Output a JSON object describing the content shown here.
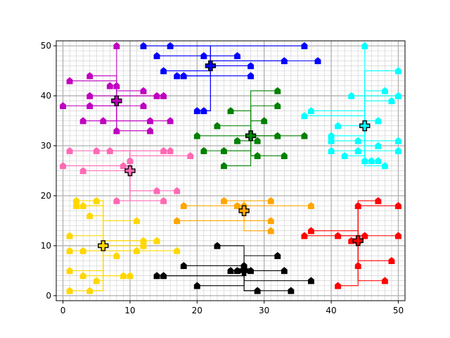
{
  "chart_data": {
    "type": "scatter",
    "title": "",
    "xlabel": "",
    "ylabel": "",
    "xlim": [
      -1,
      51
    ],
    "ylim": [
      -1,
      51
    ],
    "major_ticks": [
      0,
      10,
      20,
      30,
      40,
      50
    ],
    "major_tick_labels": [
      "0",
      "10",
      "20",
      "30",
      "40",
      "50"
    ],
    "minor_step": 1,
    "grid": "major and minor",
    "legend": "none",
    "series": [
      {
        "color": "#0000ff",
        "center": [
          22,
          46
        ],
        "points": [
          [
            12,
            50
          ],
          [
            16,
            50
          ],
          [
            36,
            50
          ],
          [
            14,
            48
          ],
          [
            21,
            48
          ],
          [
            26,
            48
          ],
          [
            33,
            47
          ],
          [
            38,
            47
          ],
          [
            28,
            46
          ],
          [
            15,
            45
          ],
          [
            28,
            44
          ],
          [
            17,
            44
          ],
          [
            18,
            44
          ],
          [
            20,
            37
          ],
          [
            21,
            37
          ]
        ]
      },
      {
        "color": "#bf00bf",
        "center": [
          8,
          39
        ],
        "points": [
          [
            8,
            50
          ],
          [
            1,
            43
          ],
          [
            4,
            44
          ],
          [
            7,
            42
          ],
          [
            8,
            42
          ],
          [
            12,
            41
          ],
          [
            4,
            40
          ],
          [
            14,
            40
          ],
          [
            15,
            40
          ],
          [
            0,
            38
          ],
          [
            4,
            38
          ],
          [
            12,
            38
          ],
          [
            3,
            35
          ],
          [
            6,
            35
          ],
          [
            13,
            35
          ],
          [
            16,
            35
          ],
          [
            8,
            33
          ],
          [
            13,
            33
          ]
        ]
      },
      {
        "color": "#008000",
        "center": [
          28,
          32
        ],
        "points": [
          [
            32,
            41
          ],
          [
            32,
            38
          ],
          [
            25,
            37
          ],
          [
            30,
            35
          ],
          [
            23,
            34
          ],
          [
            20,
            32
          ],
          [
            32,
            32
          ],
          [
            36,
            32
          ],
          [
            26,
            31
          ],
          [
            29,
            31
          ],
          [
            21,
            29
          ],
          [
            24,
            29
          ],
          [
            29,
            28
          ],
          [
            33,
            28
          ],
          [
            24,
            26
          ]
        ]
      },
      {
        "color": "#00ffff",
        "center": [
          45,
          34
        ],
        "points": [
          [
            45,
            50
          ],
          [
            50,
            45
          ],
          [
            48,
            41
          ],
          [
            43,
            40
          ],
          [
            50,
            40
          ],
          [
            49,
            39
          ],
          [
            37,
            37
          ],
          [
            36,
            36
          ],
          [
            47,
            35
          ],
          [
            41,
            34
          ],
          [
            40,
            32
          ],
          [
            40,
            31
          ],
          [
            44,
            31
          ],
          [
            50,
            31
          ],
          [
            40,
            29
          ],
          [
            44,
            29
          ],
          [
            47,
            30
          ],
          [
            50,
            29
          ],
          [
            42,
            28
          ],
          [
            45,
            27
          ],
          [
            46,
            27
          ],
          [
            47,
            27
          ],
          [
            48,
            26
          ]
        ]
      },
      {
        "color": "#ff69b4",
        "center": [
          10,
          25
        ],
        "points": [
          [
            1,
            29
          ],
          [
            5,
            29
          ],
          [
            7,
            29
          ],
          [
            15,
            29
          ],
          [
            16,
            29
          ],
          [
            19,
            28
          ],
          [
            10,
            27
          ],
          [
            0,
            26
          ],
          [
            9,
            26
          ],
          [
            3,
            25
          ],
          [
            14,
            21
          ],
          [
            17,
            21
          ],
          [
            8,
            19
          ],
          [
            15,
            19
          ]
        ]
      },
      {
        "color": "#ffa500",
        "center": [
          27,
          17
        ],
        "points": [
          [
            24,
            19
          ],
          [
            31,
            19
          ],
          [
            18,
            18
          ],
          [
            26,
            18
          ],
          [
            27,
            18
          ],
          [
            37,
            18
          ],
          [
            17,
            15
          ],
          [
            31,
            15
          ],
          [
            31,
            13
          ]
        ]
      },
      {
        "color": "#ff0000",
        "center": [
          44,
          11
        ],
        "points": [
          [
            47,
            19
          ],
          [
            44,
            18
          ],
          [
            50,
            18
          ],
          [
            45,
            12
          ],
          [
            50,
            12
          ],
          [
            37,
            13
          ],
          [
            36,
            12
          ],
          [
            41,
            12
          ],
          [
            43,
            11
          ],
          [
            44,
            11
          ],
          [
            49,
            7
          ],
          [
            44,
            6
          ],
          [
            48,
            3
          ],
          [
            41,
            2
          ]
        ]
      },
      {
        "color": "#ffd700",
        "center": [
          6,
          10
        ],
        "points": [
          [
            2,
            19
          ],
          [
            5,
            19
          ],
          [
            2,
            18
          ],
          [
            3,
            18
          ],
          [
            4,
            16
          ],
          [
            11,
            15
          ],
          [
            1,
            12
          ],
          [
            12,
            11
          ],
          [
            14,
            11
          ],
          [
            12,
            10
          ],
          [
            1,
            9
          ],
          [
            3,
            9
          ],
          [
            11,
            9
          ],
          [
            17,
            9
          ],
          [
            8,
            8
          ],
          [
            1,
            5
          ],
          [
            9,
            4
          ],
          [
            10,
            4
          ],
          [
            3,
            4
          ],
          [
            5,
            3
          ],
          [
            1,
            1
          ],
          [
            4,
            1
          ]
        ]
      },
      {
        "color": "#000000",
        "center": [
          27,
          5
        ],
        "points": [
          [
            23,
            10
          ],
          [
            32,
            8
          ],
          [
            18,
            6
          ],
          [
            27,
            6
          ],
          [
            25,
            5
          ],
          [
            26,
            5
          ],
          [
            28,
            5
          ],
          [
            33,
            5
          ],
          [
            14,
            4
          ],
          [
            15,
            4
          ],
          [
            37,
            3
          ],
          [
            20,
            2
          ],
          [
            29,
            1
          ],
          [
            34,
            1
          ]
        ]
      }
    ]
  }
}
